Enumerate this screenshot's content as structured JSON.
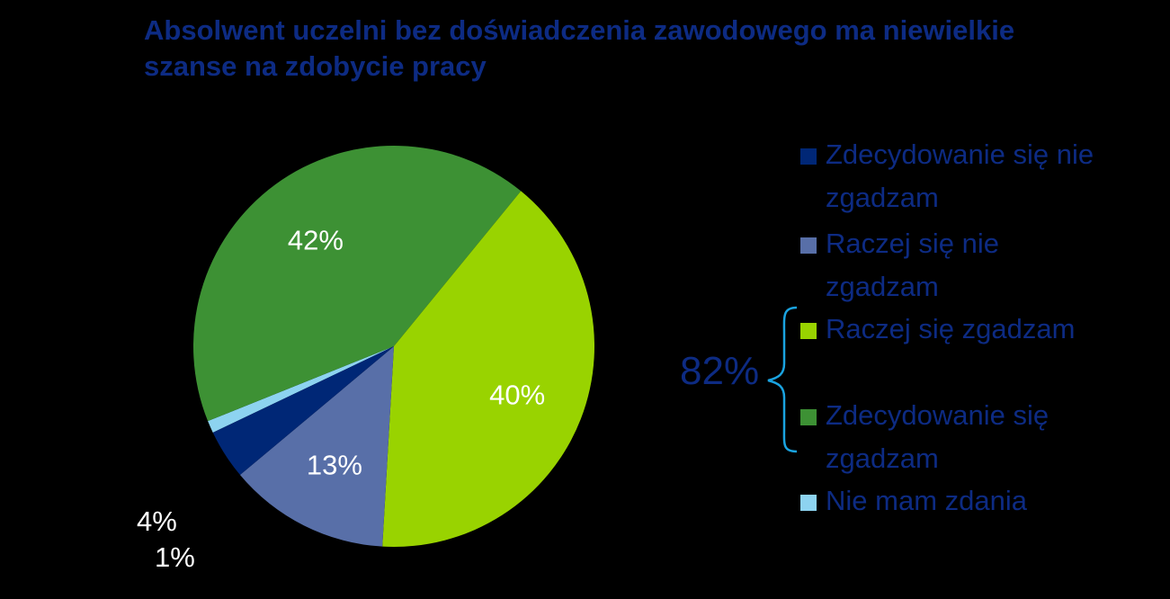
{
  "chart_data": {
    "type": "pie",
    "title": "Absolwent uczelni bez doświadczenia zawodowego ma niewielkie szanse na zdobycie pracy",
    "slices": [
      {
        "name": "Zdecydowanie się nie zgadzam",
        "value": 4,
        "label": "4%",
        "color": "#002776"
      },
      {
        "name": "Raczej się nie zgadzam",
        "value": 13,
        "label": "13%",
        "color": "#586fa8"
      },
      {
        "name": "Raczej się zgadzam",
        "value": 40,
        "label": "40%",
        "color": "#99d300"
      },
      {
        "name": "Zdecydowanie się zgadzam",
        "value": 42,
        "label": "42%",
        "color": "#3d9134"
      },
      {
        "name": "Nie mam zdania",
        "value": 1,
        "label": "1%",
        "color": "#8dd3f0"
      }
    ],
    "legend_position": "right",
    "bracket_label": "82%"
  },
  "legend": {
    "items": [
      {
        "label_line1": "Zdecydowanie się nie",
        "label_line2": "zgadzam",
        "color": "#002776"
      },
      {
        "label_line1": "Raczej się nie",
        "label_line2": "zgadzam",
        "color": "#586fa8"
      },
      {
        "label_line1": "Raczej się zgadzam",
        "label_line2": "",
        "color": "#99d300"
      },
      {
        "label_line1": "Zdecydowanie się",
        "label_line2": "zgadzam",
        "color": "#3d9134"
      },
      {
        "label_line1": "Nie mam zdania",
        "label_line2": "",
        "color": "#8dd3f0"
      }
    ]
  }
}
